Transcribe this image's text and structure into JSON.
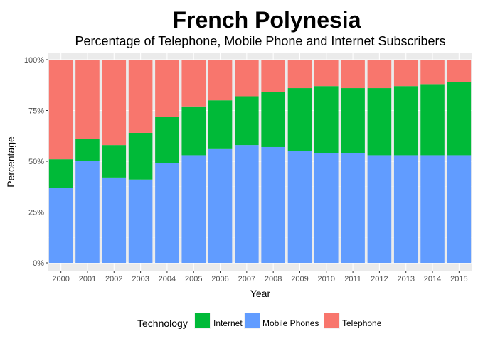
{
  "chart_data": {
    "type": "bar",
    "stacked": true,
    "title": "French Polynesia",
    "subtitle": "Percentage of Telephone, Mobile Phone and Internet Subscribers",
    "xlabel": "Year",
    "ylabel": "Percentage",
    "ylim": [
      0,
      100
    ],
    "yticks": [
      "0%",
      "25%",
      "50%",
      "75%",
      "100%"
    ],
    "ytick_values": [
      0,
      25,
      50,
      75,
      100
    ],
    "grid": true,
    "legend_position": "bottom",
    "legend_title": "Technology",
    "categories": [
      "2000",
      "2001",
      "2002",
      "2003",
      "2004",
      "2005",
      "2006",
      "2007",
      "2008",
      "2009",
      "2010",
      "2011",
      "2012",
      "2013",
      "2014",
      "2015"
    ],
    "series": [
      {
        "name": "Mobile Phones",
        "color": "#619CFF",
        "values": [
          37,
          50,
          42,
          41,
          49,
          53,
          56,
          58,
          57,
          55,
          54,
          54,
          53,
          53,
          53,
          53
        ]
      },
      {
        "name": "Internet",
        "color": "#00BA38",
        "values": [
          14,
          11,
          16,
          23,
          23,
          24,
          24,
          24,
          27,
          31,
          33,
          32,
          33,
          34,
          35,
          36
        ]
      },
      {
        "name": "Telephone",
        "color": "#F8766D",
        "values": [
          49,
          39,
          42,
          36,
          28,
          23,
          20,
          18,
          16,
          14,
          13,
          14,
          14,
          13,
          12,
          11
        ]
      }
    ],
    "legend_order": [
      "Internet",
      "Mobile Phones",
      "Telephone"
    ]
  }
}
